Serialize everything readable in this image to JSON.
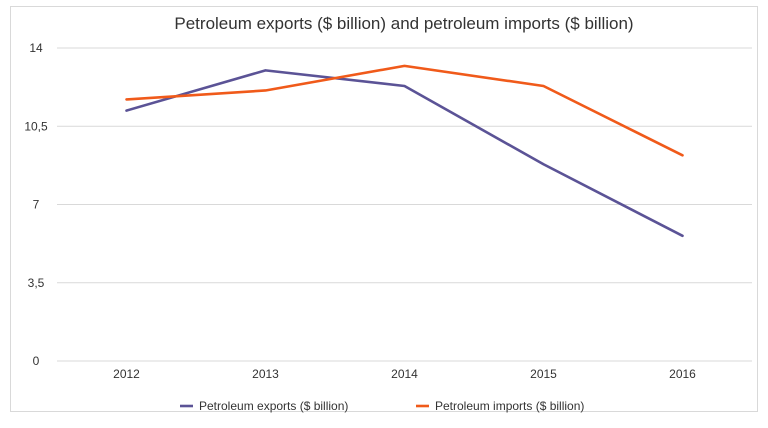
{
  "chart_data": {
    "type": "line",
    "title": "Petroleum exports ($ billion) and petroleum imports ($ billion)",
    "xlabel": "",
    "ylabel": "",
    "categories": [
      "2012",
      "2013",
      "2014",
      "2015",
      "2016"
    ],
    "ylim": [
      0,
      14
    ],
    "yticks": [
      "0",
      "3,5",
      "7",
      "10,5",
      "14"
    ],
    "ytick_values": [
      0,
      3.5,
      7,
      10.5,
      14
    ],
    "grid": true,
    "legend_position": "bottom",
    "series": [
      {
        "name": "Petroleum exports ($ billion)",
        "color": "#5b5396",
        "values": [
          11.2,
          13.0,
          12.3,
          8.8,
          5.6
        ]
      },
      {
        "name": "Petroleum imports ($ billion)",
        "color": "#f05a1a",
        "values": [
          11.7,
          12.1,
          13.2,
          12.3,
          9.2
        ]
      }
    ]
  }
}
